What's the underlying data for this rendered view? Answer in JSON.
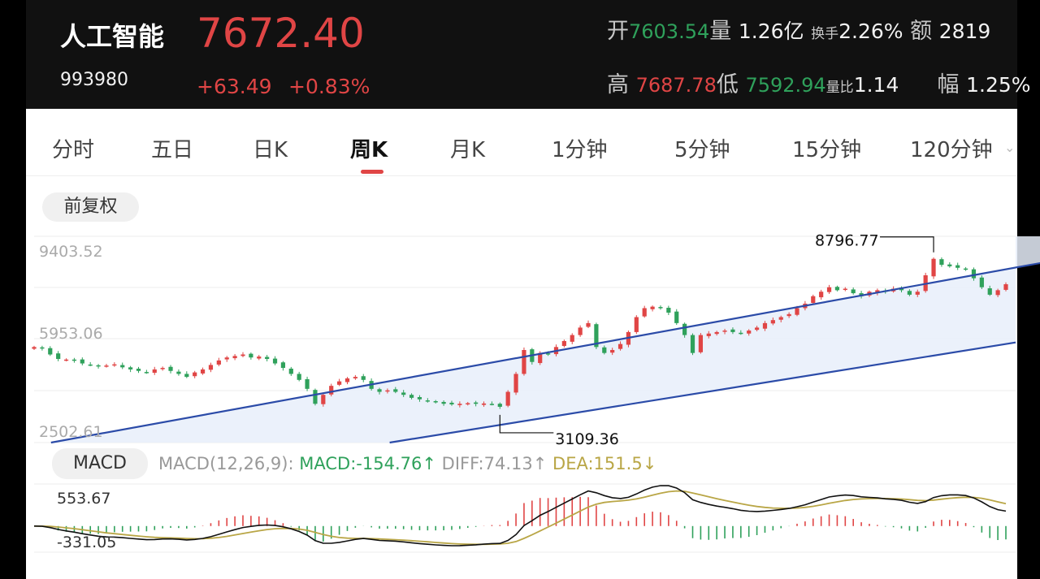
{
  "header": {
    "name": "人工智能",
    "code": "993980",
    "price": "7672.40",
    "change": "+63.49",
    "change_pct": "+0.83%",
    "stats": {
      "open_label": "开",
      "open": "7603.54",
      "vol_label": "量",
      "vol": "1.26亿",
      "turnover_label": "换手",
      "turnover": "2.26%",
      "amount_label": "额",
      "amount": "2819",
      "high_label": "高",
      "high": "7687.78",
      "low_label": "低",
      "low": "7592.94",
      "vol_ratio_label": "量比",
      "vol_ratio": "1.14",
      "amp_label": "幅",
      "amp": "1.25%"
    }
  },
  "tabs": [
    "分时",
    "五日",
    "日K",
    "周K",
    "月K",
    "1分钟",
    "5分钟",
    "15分钟",
    "120分钟"
  ],
  "active_tab": "周K",
  "adjust_label": "前复权",
  "colors": {
    "up": "#e04545",
    "down": "#2fa15b",
    "channel": "#2b4ba8",
    "dea": "#b9a646",
    "diff": "#111111"
  },
  "chart_data": [
    {
      "type": "candlestick",
      "yticks": [
        "9403.52",
        "5953.06",
        "2502.61"
      ],
      "annotations": {
        "high": "8796.77",
        "low": "3109.36"
      },
      "closes": [
        5700,
        5650,
        5450,
        5300,
        5280,
        5260,
        5150,
        5100,
        5050,
        5080,
        5120,
        5020,
        4950,
        4900,
        4850,
        4950,
        5000,
        4900,
        4800,
        4700,
        4850,
        4950,
        5100,
        5250,
        5350,
        5400,
        5450,
        5350,
        5380,
        5300,
        5150,
        5000,
        4800,
        4600,
        4300,
        3800,
        4100,
        4400,
        4550,
        4650,
        4700,
        4600,
        4300,
        4200,
        4250,
        4200,
        4100,
        4000,
        3950,
        3900,
        3850,
        3800,
        3780,
        3800,
        3820,
        3800,
        3810,
        3790,
        3700,
        4200,
        4800,
        5600,
        5200,
        5500,
        5450,
        5700,
        5900,
        6100,
        6350,
        6500,
        5700,
        5500,
        5600,
        5800,
        6200,
        6700,
        7000,
        7050,
        7000,
        6850,
        6500,
        6100,
        5500,
        6100,
        6150,
        6200,
        6250,
        6200,
        6150,
        6250,
        6350,
        6500,
        6600,
        6700,
        6800,
        7000,
        7150,
        7400,
        7550,
        7700,
        7600,
        7650,
        7500,
        7400,
        7550,
        7600,
        7550,
        7650,
        7600,
        7450,
        7550,
        8100,
        8650,
        8450,
        8400,
        8350,
        8300,
        8000,
        7700,
        7450,
        7600,
        7800
      ],
      "channel": {
        "upper": {
          "from": {
            "bar": 0,
            "value": 2400
          },
          "to": {
            "bar": 121,
            "value": 8300
          }
        },
        "lower": {
          "from": {
            "bar": 0,
            "value": 600
          },
          "to": {
            "bar": 121,
            "value": 5800
          }
        }
      }
    },
    {
      "type": "macd",
      "label": "MACD(12,26,9):",
      "macd_label": "MACD:-154.76",
      "diff_label": "DIFF:74.13",
      "dea_label": "DEA:151.5",
      "yticks": [
        "553.67",
        "-331.05"
      ]
    }
  ]
}
